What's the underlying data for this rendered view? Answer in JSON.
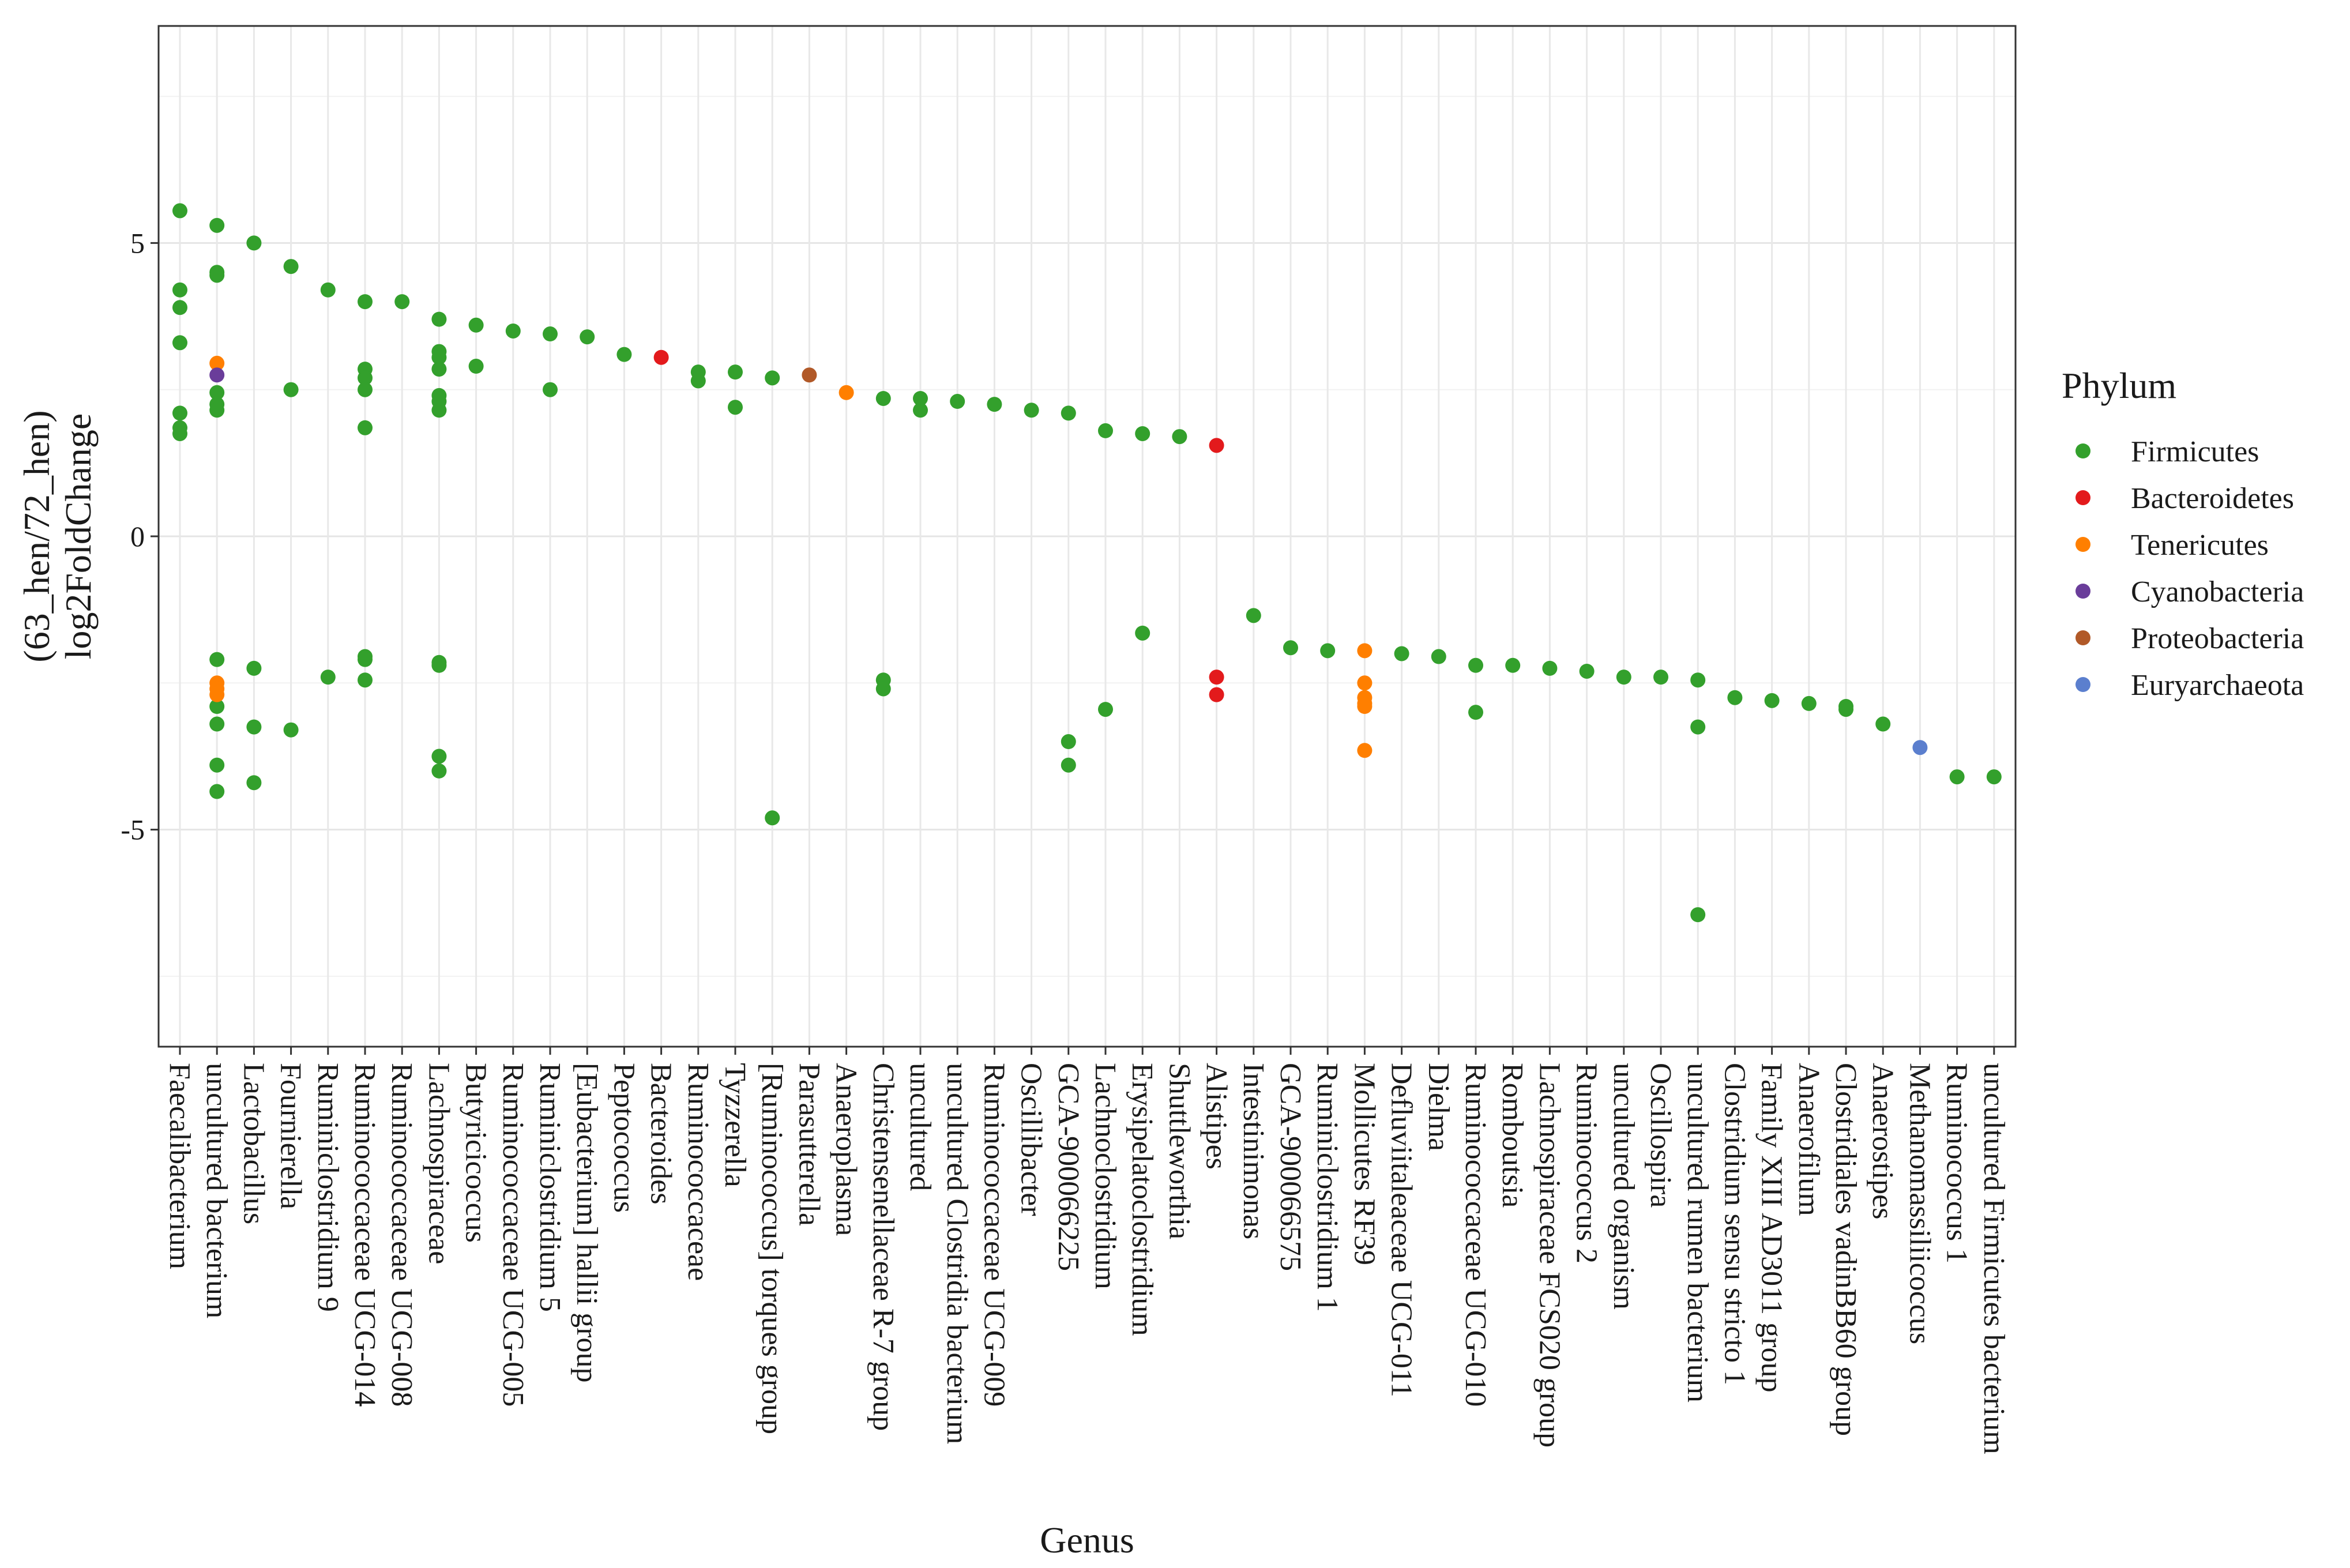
{
  "chart_data": {
    "type": "scatter",
    "xlabel": "Genus",
    "ylabel_line1": "(63_hen/72_hen)",
    "ylabel_line2": "log2FoldChange",
    "ylim": [
      -8.7,
      8.7
    ],
    "yticks": [
      5,
      0,
      -5
    ],
    "ytick_labels": [
      "5",
      "0",
      "-5"
    ],
    "categories": [
      "Faecalibacterium",
      "uncultured bacterium",
      "Lactobacillus",
      "Fournierella",
      "Ruminiclostridium 9",
      "Ruminococcaceae UCG-014",
      "Ruminococcaceae UCG-008",
      "Lachnospiraceae",
      "Butyricicoccus",
      "Ruminococcaceae UCG-005",
      "Ruminiclostridium 5",
      "[Eubacterium] hallii group",
      "Peptococcus",
      "Bacteroides",
      "Ruminococcaceae",
      "Tyzzerella",
      "[Ruminococcus] torques group",
      "Parasutterella",
      "Anaeroplasma",
      "Christensenellaceae R-7 group",
      "uncultured",
      "uncultured Clostridia bacterium",
      "Ruminococcaceae UCG-009",
      "Oscillibacter",
      "GCA-900066225",
      "Lachnoclostridium",
      "Erysipelatoclostridium",
      "Shuttleworthia",
      "Alistipes",
      "Intestinimonas",
      "GCA-900066575",
      "Ruminiclostridium 1",
      "Mollicutes RF39",
      "Defluviitaleaceae UCG-011",
      "Dielma",
      "Ruminococcaceae UCG-010",
      "Romboutsia",
      "Lachnospiraceae FCS020 group",
      "Ruminococcus 2",
      "uncultured organism",
      "Oscillospira",
      "uncultured rumen bacterium",
      "Clostridium sensu stricto 1",
      "Family XIII AD3011 group",
      "Anaerofilum",
      "Clostridiales vadinBB60 group",
      "Anaerostipes",
      "Methanomassiliicoccus",
      "Ruminococcus 1",
      "uncultured Firmicutes bacterium"
    ],
    "legend": {
      "title": "Phylum",
      "entries": [
        {
          "name": "Firmicutes",
          "color": "#33a02c"
        },
        {
          "name": "Bacteroidetes",
          "color": "#e31a1c"
        },
        {
          "name": "Tenericutes",
          "color": "#ff7f00"
        },
        {
          "name": "Cyanobacteria",
          "color": "#6a3d9a"
        },
        {
          "name": "Proteobacteria",
          "color": "#b15928"
        },
        {
          "name": "Euryarchaeota",
          "color": "#5b7fce"
        }
      ]
    },
    "series": [
      {
        "name": "Firmicutes",
        "points": [
          [
            0,
            5.55
          ],
          [
            0,
            4.2
          ],
          [
            0,
            3.9
          ],
          [
            0,
            3.3
          ],
          [
            0,
            2.1
          ],
          [
            0,
            1.85
          ],
          [
            0,
            1.75
          ],
          [
            1,
            5.3
          ],
          [
            1,
            4.5
          ],
          [
            1,
            4.45
          ],
          [
            1,
            2.45
          ],
          [
            1,
            2.25
          ],
          [
            1,
            2.15
          ],
          [
            1,
            -2.1
          ],
          [
            1,
            -2.9
          ],
          [
            1,
            -3.2
          ],
          [
            1,
            -3.9
          ],
          [
            1,
            -4.35
          ],
          [
            2,
            5.0
          ],
          [
            2,
            -2.25
          ],
          [
            2,
            -3.25
          ],
          [
            2,
            -4.2
          ],
          [
            3,
            4.6
          ],
          [
            3,
            2.5
          ],
          [
            3,
            -3.3
          ],
          [
            4,
            4.2
          ],
          [
            4,
            -2.4
          ],
          [
            5,
            4.0
          ],
          [
            5,
            2.85
          ],
          [
            5,
            2.7
          ],
          [
            5,
            2.5
          ],
          [
            5,
            1.85
          ],
          [
            5,
            -2.05
          ],
          [
            5,
            -2.1
          ],
          [
            5,
            -2.45
          ],
          [
            6,
            4.0
          ],
          [
            7,
            3.7
          ],
          [
            7,
            3.15
          ],
          [
            7,
            3.05
          ],
          [
            7,
            2.85
          ],
          [
            7,
            2.4
          ],
          [
            7,
            2.3
          ],
          [
            7,
            2.15
          ],
          [
            7,
            -2.15
          ],
          [
            7,
            -2.2
          ],
          [
            7,
            -3.75
          ],
          [
            7,
            -4.0
          ],
          [
            8,
            3.6
          ],
          [
            8,
            2.9
          ],
          [
            9,
            3.5
          ],
          [
            10,
            3.45
          ],
          [
            10,
            2.5
          ],
          [
            11,
            3.4
          ],
          [
            12,
            3.1
          ],
          [
            14,
            2.8
          ],
          [
            14,
            2.65
          ],
          [
            15,
            2.8
          ],
          [
            15,
            2.2
          ],
          [
            16,
            2.7
          ],
          [
            16,
            -4.8
          ],
          [
            19,
            2.35
          ],
          [
            19,
            -2.45
          ],
          [
            19,
            -2.6
          ],
          [
            20,
            2.35
          ],
          [
            20,
            2.15
          ],
          [
            21,
            2.3
          ],
          [
            22,
            2.25
          ],
          [
            23,
            2.15
          ],
          [
            24,
            2.1
          ],
          [
            24,
            -3.5
          ],
          [
            24,
            -3.9
          ],
          [
            25,
            1.8
          ],
          [
            25,
            -2.95
          ],
          [
            26,
            1.75
          ],
          [
            26,
            -1.65
          ],
          [
            27,
            1.7
          ],
          [
            29,
            -1.35
          ],
          [
            30,
            -1.9
          ],
          [
            31,
            -1.95
          ],
          [
            33,
            -2.0
          ],
          [
            34,
            -2.05
          ],
          [
            35,
            -2.2
          ],
          [
            35,
            -3.0
          ],
          [
            36,
            -2.2
          ],
          [
            37,
            -2.25
          ],
          [
            38,
            -2.3
          ],
          [
            39,
            -2.4
          ],
          [
            40,
            -2.4
          ],
          [
            41,
            -2.45
          ],
          [
            41,
            -3.25
          ],
          [
            41,
            -6.45
          ],
          [
            42,
            -2.75
          ],
          [
            43,
            -2.8
          ],
          [
            44,
            -2.85
          ],
          [
            45,
            -2.9
          ],
          [
            45,
            -2.95
          ],
          [
            46,
            -3.2
          ],
          [
            48,
            -4.1
          ],
          [
            49,
            -4.1
          ]
        ]
      },
      {
        "name": "Bacteroidetes",
        "points": [
          [
            13,
            3.05
          ],
          [
            28,
            1.55
          ],
          [
            28,
            -2.4
          ],
          [
            28,
            -2.7
          ]
        ]
      },
      {
        "name": "Tenericutes",
        "points": [
          [
            1,
            2.95
          ],
          [
            1,
            -2.5
          ],
          [
            1,
            -2.6
          ],
          [
            1,
            -2.7
          ],
          [
            18,
            2.45
          ],
          [
            32,
            -1.95
          ],
          [
            32,
            -2.5
          ],
          [
            32,
            -2.75
          ],
          [
            32,
            -2.85
          ],
          [
            32,
            -2.9
          ],
          [
            32,
            -3.65
          ]
        ]
      },
      {
        "name": "Cyanobacteria",
        "points": [
          [
            1,
            2.75
          ]
        ]
      },
      {
        "name": "Proteobacteria",
        "points": [
          [
            17,
            2.75
          ]
        ]
      },
      {
        "name": "Euryarchaeota",
        "points": [
          [
            47,
            -3.6
          ]
        ]
      }
    ]
  }
}
